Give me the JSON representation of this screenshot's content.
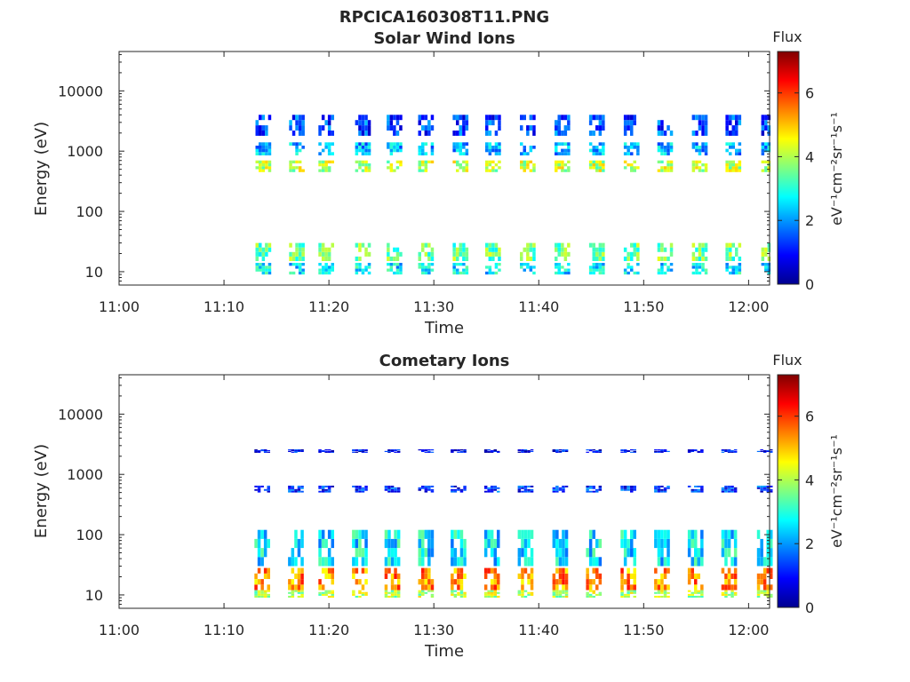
{
  "figure": {
    "title": "RPCICA160308T11.PNG"
  },
  "chart_data": [
    {
      "type": "heatmap",
      "title": "Solar Wind Ions",
      "xlabel": "Time",
      "ylabel": "Energy (eV)",
      "x_ticks": [
        "11:00",
        "11:10",
        "11:20",
        "11:30",
        "11:40",
        "11:50",
        "12:00"
      ],
      "xlim": [
        "11:00",
        "12:02"
      ],
      "y_scale": "log",
      "ylim": [
        6,
        45000
      ],
      "y_ticks": [
        {
          "value": 10,
          "label": "10"
        },
        {
          "value": 100,
          "label": "100"
        },
        {
          "value": 1000,
          "label": "1000"
        },
        {
          "value": 10000,
          "label": "10000"
        }
      ],
      "colorbar": {
        "title": "Flux",
        "label": "eV⁻¹cm⁻²sr⁻¹s⁻¹",
        "range": [
          0,
          7.3
        ],
        "ticks": [
          "0",
          "2",
          "4",
          "6"
        ],
        "colormap": "jet"
      },
      "sweep_start_minutes": [
        13,
        16.2,
        19,
        22.5,
        25.5,
        28.5,
        31.8,
        34.9,
        38.2,
        41.5,
        44.8,
        48.1,
        51.3,
        54.6,
        57.8,
        61.2
      ],
      "bands": [
        {
          "e_min": 450,
          "e_max": 700,
          "flux": 4.1
        },
        {
          "e_min": 850,
          "e_max": 1400,
          "flux": 2.2
        },
        {
          "e_min": 1800,
          "e_max": 4000,
          "flux": 1.4
        },
        {
          "e_min": 15,
          "e_max": 30,
          "flux": 3.5
        },
        {
          "e_min": 9,
          "e_max": 14,
          "flux": 2.6
        }
      ]
    },
    {
      "type": "heatmap",
      "title": "Cometary Ions",
      "xlabel": "Time",
      "ylabel": "Energy (eV)",
      "x_ticks": [
        "11:00",
        "11:10",
        "11:20",
        "11:30",
        "11:40",
        "11:50",
        "12:00"
      ],
      "xlim": [
        "11:00",
        "12:02"
      ],
      "y_scale": "log",
      "ylim": [
        6,
        45000
      ],
      "y_ticks": [
        {
          "value": 10,
          "label": "10"
        },
        {
          "value": 100,
          "label": "100"
        },
        {
          "value": 1000,
          "label": "1000"
        },
        {
          "value": 10000,
          "label": "10000"
        }
      ],
      "colorbar": {
        "title": "Flux",
        "label": "eV⁻¹cm⁻²sr⁻¹s⁻¹",
        "range": [
          0,
          7.3
        ],
        "ticks": [
          "0",
          "2",
          "4",
          "6"
        ],
        "colormap": "jet"
      },
      "sweep_start_minutes": [
        12.9,
        16.1,
        19,
        22.2,
        25.3,
        28.5,
        31.6,
        34.8,
        38,
        41.3,
        44.5,
        47.8,
        51,
        54.2,
        57.4,
        60.8
      ],
      "bands": [
        {
          "e_min": 12,
          "e_max": 28,
          "flux": 5.4
        },
        {
          "e_min": 9,
          "e_max": 12,
          "flux": 4.0
        },
        {
          "e_min": 30,
          "e_max": 120,
          "flux": 2.6
        },
        {
          "e_min": 500,
          "e_max": 650,
          "flux": 1.2
        },
        {
          "e_min": 2300,
          "e_max": 2600,
          "flux": 0.9
        }
      ]
    }
  ]
}
